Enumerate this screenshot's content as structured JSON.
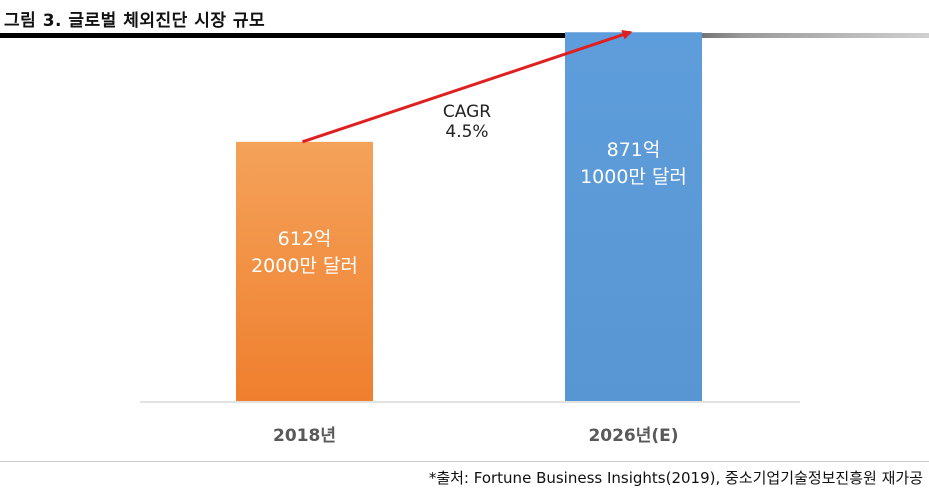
{
  "figure": {
    "title": "그림 3. 글로벌 체외진단 시장 규모",
    "source": "*출처: Fortune Business Insights(2019), 중소기업기술정보진흥원 재가공"
  },
  "chart_data": {
    "type": "bar",
    "categories": [
      "2018년",
      "2026년(E)"
    ],
    "values": [
      612.2,
      871.1
    ],
    "value_labels": [
      [
        "612억",
        "2000만 달러"
      ],
      [
        "871억",
        "1000만 달러"
      ]
    ],
    "bar_colors": [
      "#f08a3c",
      "#5b9bd5"
    ],
    "annotation": {
      "lines": [
        "CAGR",
        "4.5%"
      ],
      "arrow_color": "#e02020"
    },
    "ylim": [
      0,
      900
    ],
    "grid": false,
    "legend": "none"
  }
}
